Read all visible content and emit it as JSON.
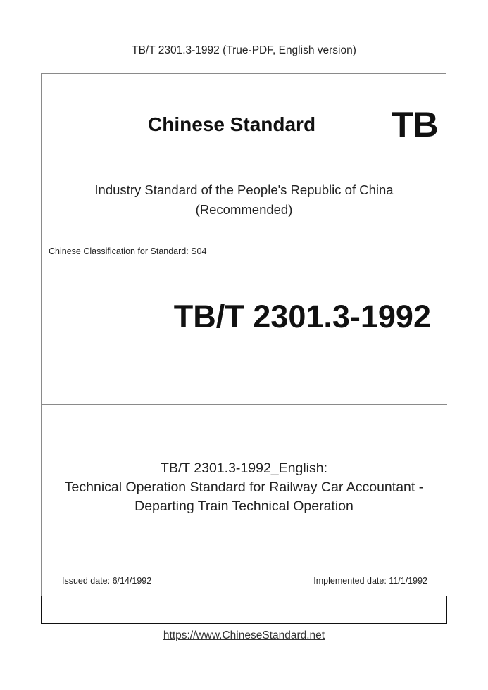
{
  "header": {
    "text": "TB/T 2301.3-1992 (True-PDF, English version)"
  },
  "cover": {
    "brand": "Chinese Standard",
    "code_prefix": "TB",
    "industry_line": "Industry Standard of the People's Republic of China",
    "recommended": "(Recommended)",
    "classification": "Chinese Classification for Standard: S04",
    "standard_code": "TB/T 2301.3-1992",
    "title_lines": [
      "TB/T 2301.3-1992_English:",
      "Technical Operation Standard for Railway Car Accountant -",
      "Departing Train Technical Operation"
    ],
    "issued": "Issued date: 6/14/1992",
    "implemented": "Implemented date: 11/1/1992"
  },
  "footer": {
    "url": "https://www.ChineseStandard.net"
  }
}
